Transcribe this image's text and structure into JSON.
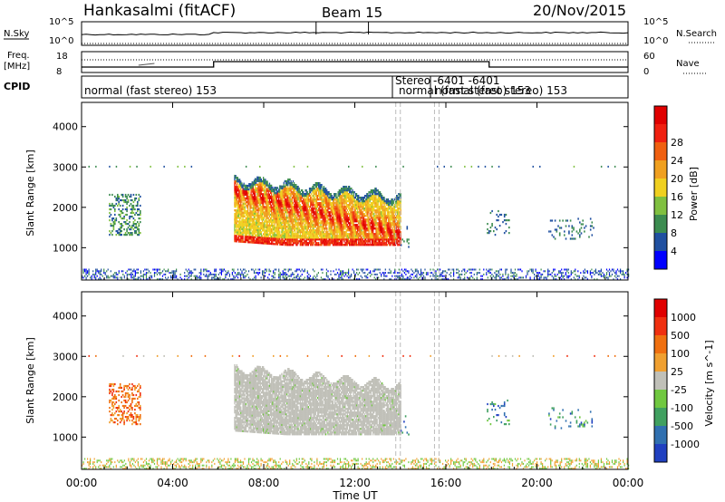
{
  "header": {
    "station": "Hankasalmi (fitACF)",
    "beam": "Beam 15",
    "date": "20/Nov/2015"
  },
  "noise_panel": {
    "left_label": "N.Sky",
    "right_label": "N.Search",
    "left_ticks": [
      "10^5",
      "10^0"
    ],
    "right_ticks": [
      "10^5",
      "10^0"
    ]
  },
  "freq_panel": {
    "left_label_1": "Freq.",
    "left_label_2": "[MHz]",
    "right_label": "Nave",
    "left_ticks": [
      "18",
      "8"
    ],
    "right_ticks": [
      "60",
      "0"
    ]
  },
  "cpid_panel": {
    "label": "CPID",
    "segments": [
      {
        "text": "normal (fast stereo) 153"
      },
      {
        "text": "Stereo"
      },
      {
        "text": "-6401 -6401"
      },
      {
        "text": "normal (fast stereo) 153"
      },
      {
        "text": "normal (fast stereo) 153"
      }
    ]
  },
  "colors": {
    "power_scale": [
      "#0000ff",
      "#2050a0",
      "#3c8c50",
      "#80c040",
      "#f0d020",
      "#f0a020",
      "#f06010",
      "#f02010",
      "#e00000"
    ],
    "velocity_scale": [
      "#2040c0",
      "#3070b0",
      "#40a060",
      "#70c840",
      "#c0c0b8",
      "#f0a030",
      "#f07010",
      "#f03010",
      "#e00000"
    ]
  },
  "chart_data": [
    {
      "type": "heatmap",
      "name": "power",
      "ylabel": "Slant Range [km]",
      "yticks": [
        "1000",
        "2000",
        "3000",
        "4000"
      ],
      "ylim": [
        200,
        4600
      ],
      "xlim_hours": [
        0,
        24
      ],
      "colorbar": {
        "label": "Power [dB]",
        "ticks": [
          "4",
          "8",
          "12",
          "16",
          "20",
          "24",
          "28"
        ]
      },
      "regions": [
        {
          "t0": 6.7,
          "t1": 14.0,
          "r0": 1000,
          "r1": 2700,
          "level": "strong"
        },
        {
          "t0": 1.2,
          "t1": 2.5,
          "r0": 1300,
          "r1": 2300,
          "level": "weak"
        },
        {
          "t0": 0.0,
          "t1": 24.0,
          "r0": 200,
          "r1": 450,
          "level": "ground"
        }
      ]
    },
    {
      "type": "heatmap",
      "name": "velocity",
      "ylabel": "Slant Range [km]",
      "yticks": [
        "1000",
        "2000",
        "3000",
        "4000"
      ],
      "ylim": [
        200,
        4600
      ],
      "xlim_hours": [
        0,
        24
      ],
      "colorbar": {
        "label": "Velocity [m s^-1]",
        "ticks": [
          "1000",
          "500",
          "100",
          "25",
          "-25",
          "-100",
          "-500",
          "-1000"
        ]
      },
      "regions": [
        {
          "t0": 6.7,
          "t1": 14.0,
          "r0": 1000,
          "r1": 2700,
          "level": "ground-scatter"
        },
        {
          "t0": 1.2,
          "t1": 2.5,
          "r0": 1300,
          "r1": 2300,
          "level": "receding"
        }
      ]
    }
  ],
  "xaxis": {
    "ticks": [
      "00:00",
      "04:00",
      "08:00",
      "12:00",
      "16:00",
      "20:00",
      "00:00"
    ],
    "label": "Time UT"
  }
}
